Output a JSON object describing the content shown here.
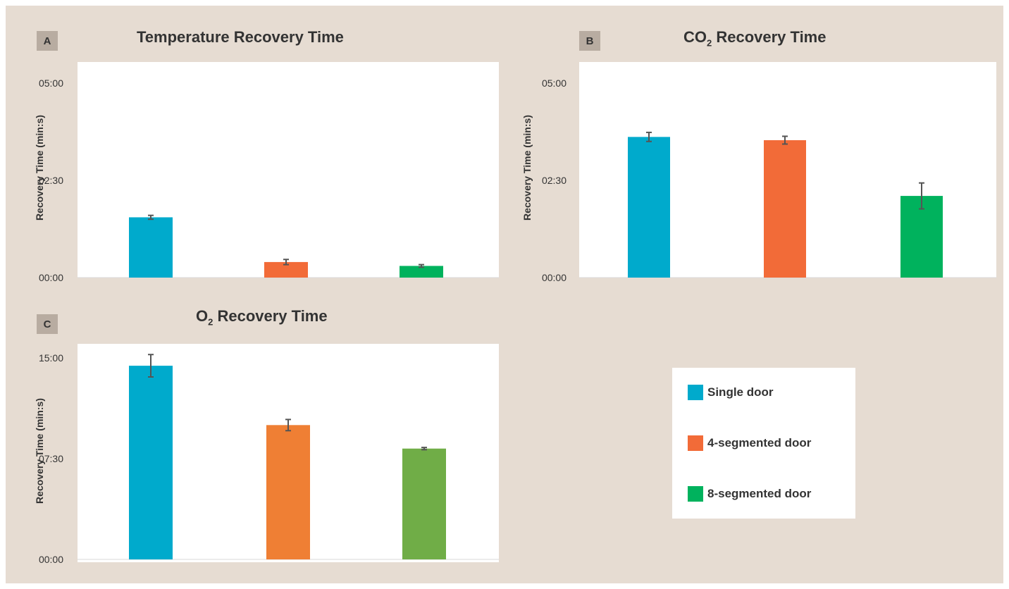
{
  "chart_data": [
    {
      "panel": "A",
      "type": "bar",
      "title": "Temperature Recovery Time",
      "ylabel": "Recovery Time (min:s)",
      "ylim": [
        0,
        300
      ],
      "yticks": [
        0,
        150,
        300
      ],
      "ytick_labels": [
        "00:00",
        "02:30",
        "05:00"
      ],
      "categories": [
        "Single door",
        "4-segmented door",
        "8-segmented door"
      ],
      "values": [
        93,
        24,
        18
      ],
      "errors": [
        3,
        4,
        2
      ],
      "colors": [
        "#00aacc",
        "#f26b38",
        "#00b25d"
      ]
    },
    {
      "panel": "B",
      "type": "bar",
      "title": "CO",
      "title_sub": "2",
      "title_rest": " Recovery Time",
      "ylabel": "Recovery Time (min:s)",
      "ylim": [
        0,
        300
      ],
      "yticks": [
        0,
        150,
        300
      ],
      "ytick_labels": [
        "00:00",
        "02:30",
        "05:00"
      ],
      "categories": [
        "Single door",
        "4-segmented door",
        "8-segmented door"
      ],
      "values": [
        217,
        212,
        126
      ],
      "errors": [
        7,
        6,
        20
      ],
      "colors": [
        "#00aacc",
        "#f26b38",
        "#00b25d"
      ]
    },
    {
      "panel": "C",
      "type": "bar",
      "title": "O",
      "title_sub": "2",
      "title_rest": " Recovery Time",
      "ylabel": "Recovery Time (min:s)",
      "ylim": [
        0,
        900
      ],
      "yticks": [
        0,
        450,
        900
      ],
      "ytick_labels": [
        "00:00",
        "07:30",
        "15:00"
      ],
      "categories": [
        "Single door",
        "4-segmented door",
        "8-segmented door"
      ],
      "values": [
        865,
        600,
        495
      ],
      "errors": [
        50,
        25,
        5
      ],
      "colors": [
        "#00aacc",
        "#ef7f34",
        "#70ad47"
      ]
    }
  ],
  "legend": {
    "placement": "bottom-right",
    "items": [
      {
        "label": "Single door",
        "color": "#00aacc"
      },
      {
        "label": "4-segmented door",
        "color": "#f26b38"
      },
      {
        "label": "8-segmented door",
        "color": "#00b25d"
      }
    ]
  }
}
